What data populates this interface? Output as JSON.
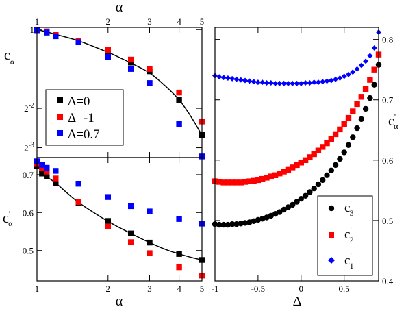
{
  "colors": {
    "black": "#000000",
    "red": "#ff0000",
    "blue": "#0000ff"
  },
  "chart_data": [
    {
      "id": "top-left",
      "type": "scatter",
      "xscale": "log",
      "yscale": "log2",
      "xlim": [
        1,
        5
      ],
      "ylim": [
        0.105,
        1.04
      ],
      "top_xlabel": "α",
      "top_xticks": [
        "1",
        "2",
        "3",
        "4",
        "5"
      ],
      "ylabel": "c",
      "ylabel_sub": "α",
      "yticks": [
        {
          "value": 1,
          "label": "1",
          "exp": ""
        },
        {
          "value": 0.25,
          "label": "2",
          "exp": "-2"
        },
        {
          "value": 0.125,
          "label": "2",
          "exp": "-3"
        }
      ],
      "series": [
        {
          "name": "Δ=0",
          "color": "#000000",
          "marker": "square",
          "x": [
            1,
            1.1,
            1.2,
            1.5,
            2,
            2.5,
            3,
            4,
            5
          ],
          "y": [
            0.99,
            0.95,
            0.91,
            0.82,
            0.67,
            0.56,
            0.48,
            0.29,
            0.156
          ]
        },
        {
          "name": "Δ=-1",
          "color": "#ff0000",
          "marker": "square",
          "x": [
            1,
            1.1,
            1.2,
            1.5,
            2,
            2.5,
            3,
            4,
            5
          ],
          "y": [
            0.99,
            0.97,
            0.91,
            0.82,
            0.7,
            0.59,
            0.5,
            0.33,
            0.198
          ]
        },
        {
          "name": "Δ=0.7",
          "color": "#0000ff",
          "marker": "square",
          "x": [
            1,
            1.1,
            1.2,
            1.5,
            2,
            2.5,
            3,
            4,
            5
          ],
          "y": [
            0.99,
            0.95,
            0.89,
            0.8,
            0.62,
            0.5,
            0.39,
            0.19,
            0.107
          ]
        }
      ],
      "fit_line": {
        "color": "#000000",
        "x": [
          1,
          1.1,
          1.2,
          1.5,
          2,
          2.5,
          3,
          3.5,
          4,
          4.5,
          5
        ],
        "y": [
          1.0,
          0.96,
          0.92,
          0.82,
          0.67,
          0.555,
          0.465,
          0.37,
          0.29,
          0.215,
          0.155
        ]
      }
    },
    {
      "id": "bottom-left",
      "type": "scatter",
      "xscale": "log",
      "xlim": [
        1,
        5
      ],
      "ylim": [
        0.42,
        0.745
      ],
      "xlabel": "α",
      "xticks": [
        "1",
        "2",
        "3",
        "4",
        "5"
      ],
      "ylabel": "c",
      "ylabel_sup": "'",
      "ylabel_sub": "α",
      "yticks": [
        "0.5",
        "0.6",
        "0.7"
      ],
      "series": [
        {
          "name": "Δ=0",
          "color": "#000000",
          "marker": "square",
          "x": [
            1,
            1.05,
            1.1,
            1.2,
            1.5,
            2,
            2.5,
            3,
            4,
            5
          ],
          "y": [
            0.722,
            0.703,
            0.695,
            0.678,
            0.625,
            0.578,
            0.545,
            0.521,
            0.491,
            0.475
          ]
        },
        {
          "name": "Δ=-1",
          "color": "#ff0000",
          "marker": "square",
          "x": [
            1,
            1.05,
            1.1,
            1.2,
            1.5,
            2,
            2.5,
            3,
            4,
            5
          ],
          "y": [
            0.728,
            0.718,
            0.708,
            0.69,
            0.628,
            0.563,
            0.522,
            0.493,
            0.456,
            0.434
          ]
        },
        {
          "name": "Δ=0.7",
          "color": "#0000ff",
          "marker": "square",
          "x": [
            1,
            1.05,
            1.1,
            1.2,
            1.5,
            2,
            2.5,
            3,
            4,
            5
          ],
          "y": [
            0.735,
            0.726,
            0.718,
            0.71,
            0.676,
            0.641,
            0.617,
            0.603,
            0.583,
            0.571
          ]
        }
      ],
      "fit_line": {
        "color": "#000000",
        "x": [
          1,
          1.1,
          1.2,
          1.5,
          2,
          2.5,
          3,
          3.5,
          4,
          4.5,
          5
        ],
        "y": [
          0.722,
          0.695,
          0.678,
          0.627,
          0.577,
          0.545,
          0.521,
          0.503,
          0.491,
          0.482,
          0.475
        ]
      }
    },
    {
      "id": "right",
      "type": "scatter",
      "xlim": [
        -1,
        0.9
      ],
      "ylim": [
        0.4,
        0.82
      ],
      "xlabel": "Δ",
      "xticks": [
        "-1",
        "-0.5",
        "0",
        "0.5"
      ],
      "ylabel": "c",
      "ylabel_sup": "'",
      "ylabel_sub": "α",
      "yticks": [
        "0.4",
        "0.5",
        "0.6",
        "0.7",
        "0.8"
      ],
      "legend_position": "bottom-right",
      "series": [
        {
          "name_main": "c",
          "name_sup": "'",
          "name_sub": "3",
          "color": "#000000",
          "marker": "circle",
          "x": [
            -1,
            -0.95,
            -0.9,
            -0.85,
            -0.8,
            -0.75,
            -0.7,
            -0.65,
            -0.6,
            -0.55,
            -0.5,
            -0.45,
            -0.4,
            -0.35,
            -0.3,
            -0.25,
            -0.2,
            -0.15,
            -0.1,
            -0.05,
            0,
            0.05,
            0.1,
            0.15,
            0.2,
            0.25,
            0.3,
            0.35,
            0.4,
            0.45,
            0.5,
            0.55,
            0.6,
            0.65,
            0.7,
            0.75,
            0.8,
            0.85,
            0.9
          ],
          "y": [
            0.494,
            0.493,
            0.493,
            0.493,
            0.494,
            0.494,
            0.495,
            0.496,
            0.497,
            0.499,
            0.501,
            0.503,
            0.505,
            0.508,
            0.511,
            0.514,
            0.518,
            0.522,
            0.526,
            0.531,
            0.536,
            0.541,
            0.547,
            0.553,
            0.56,
            0.567,
            0.575,
            0.583,
            0.592,
            0.602,
            0.613,
            0.625,
            0.638,
            0.653,
            0.668,
            0.685,
            0.703,
            0.725,
            0.758
          ]
        },
        {
          "name_main": "c",
          "name_sup": "'",
          "name_sub": "2",
          "color": "#ff0000",
          "marker": "square",
          "x": [
            -1,
            -0.95,
            -0.9,
            -0.85,
            -0.8,
            -0.75,
            -0.7,
            -0.65,
            -0.6,
            -0.55,
            -0.5,
            -0.45,
            -0.4,
            -0.35,
            -0.3,
            -0.25,
            -0.2,
            -0.15,
            -0.1,
            -0.05,
            0,
            0.05,
            0.1,
            0.15,
            0.2,
            0.25,
            0.3,
            0.35,
            0.4,
            0.45,
            0.5,
            0.55,
            0.6,
            0.65,
            0.7,
            0.75,
            0.8,
            0.85,
            0.9
          ],
          "y": [
            0.565,
            0.564,
            0.563,
            0.563,
            0.563,
            0.563,
            0.563,
            0.564,
            0.565,
            0.566,
            0.567,
            0.569,
            0.571,
            0.573,
            0.575,
            0.578,
            0.581,
            0.584,
            0.588,
            0.592,
            0.596,
            0.6,
            0.605,
            0.61,
            0.616,
            0.622,
            0.628,
            0.635,
            0.643,
            0.651,
            0.66,
            0.67,
            0.681,
            0.693,
            0.705,
            0.718,
            0.733,
            0.75,
            0.775
          ]
        },
        {
          "name_main": "c",
          "name_sup": "'",
          "name_sub": "1",
          "color": "#0000ff",
          "marker": "diamond",
          "x": [
            -1,
            -0.95,
            -0.9,
            -0.85,
            -0.8,
            -0.75,
            -0.7,
            -0.65,
            -0.6,
            -0.55,
            -0.5,
            -0.45,
            -0.4,
            -0.35,
            -0.3,
            -0.25,
            -0.2,
            -0.15,
            -0.1,
            -0.05,
            0,
            0.05,
            0.1,
            0.15,
            0.2,
            0.25,
            0.3,
            0.35,
            0.4,
            0.45,
            0.5,
            0.55,
            0.6,
            0.65,
            0.7,
            0.75,
            0.8,
            0.85,
            0.9
          ],
          "y": [
            0.74,
            0.738,
            0.737,
            0.736,
            0.735,
            0.734,
            0.733,
            0.732,
            0.731,
            0.73,
            0.729,
            0.729,
            0.728,
            0.728,
            0.727,
            0.727,
            0.727,
            0.727,
            0.727,
            0.727,
            0.727,
            0.728,
            0.728,
            0.729,
            0.729,
            0.73,
            0.731,
            0.732,
            0.734,
            0.736,
            0.739,
            0.742,
            0.746,
            0.751,
            0.757,
            0.764,
            0.773,
            0.786,
            0.812
          ]
        }
      ]
    }
  ]
}
